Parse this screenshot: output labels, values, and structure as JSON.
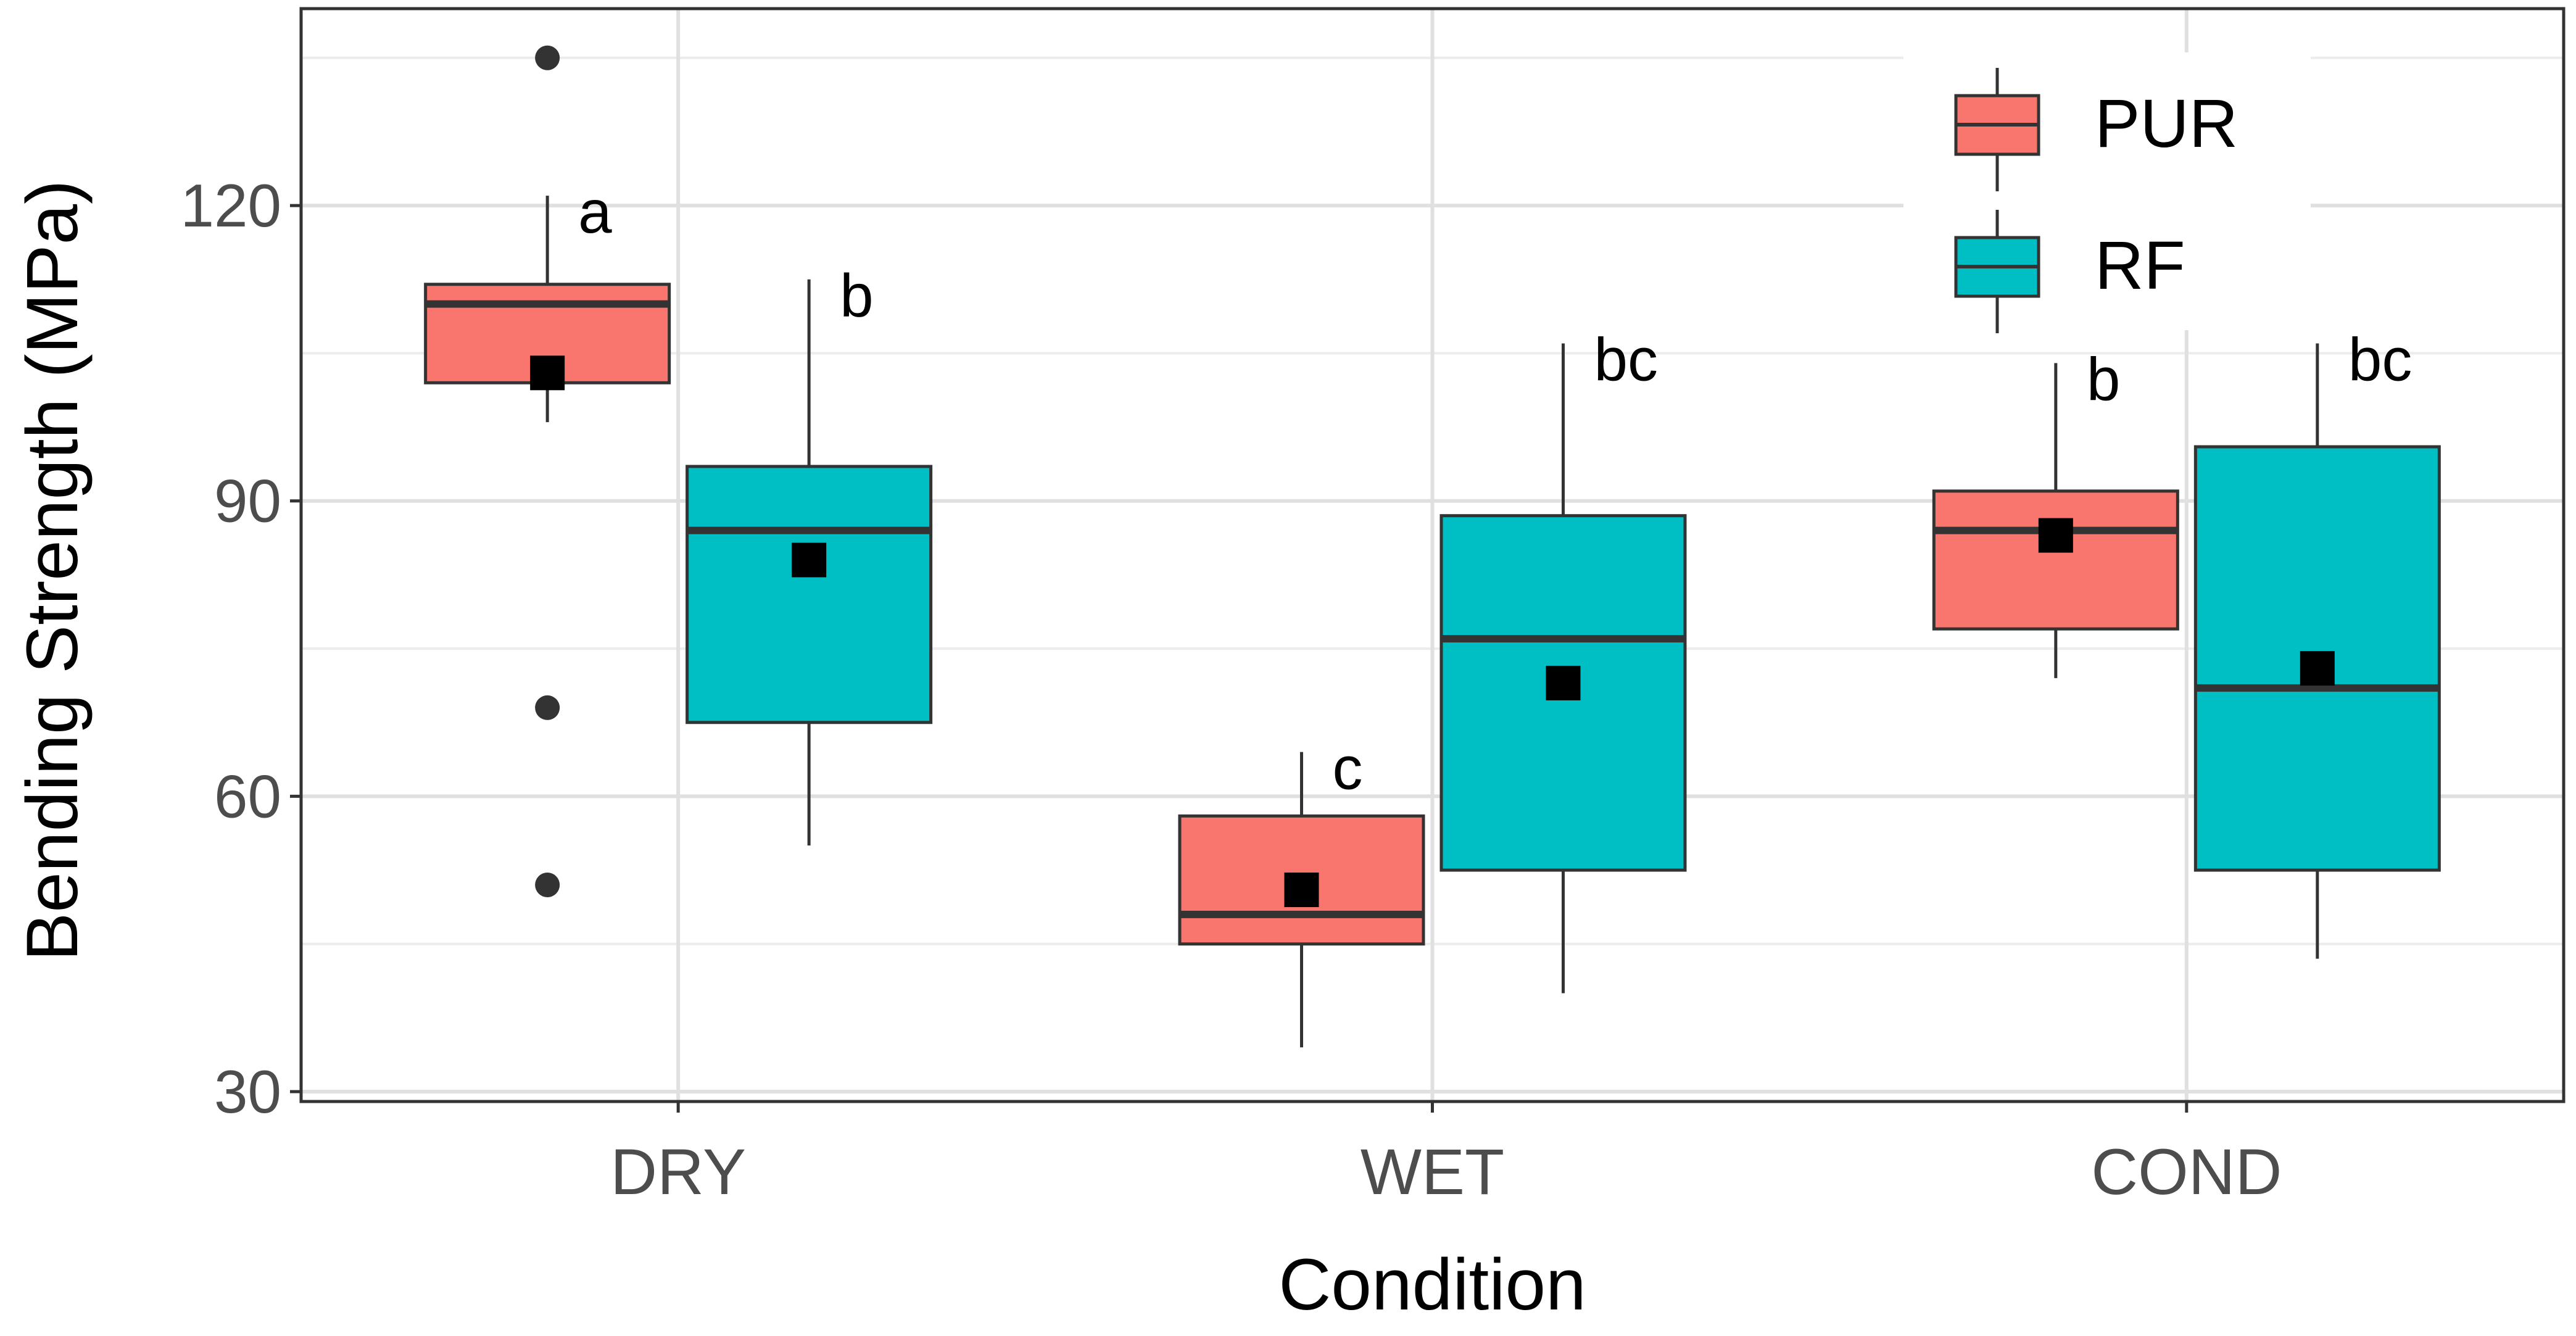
{
  "chart_data": {
    "type": "box",
    "xlabel": "Condition",
    "ylabel": "Bending Strength (MPa)",
    "ylim": [
      29,
      140
    ],
    "yticks": [
      30,
      60,
      90,
      120
    ],
    "grid": true,
    "legend_position": "top-right",
    "categories": [
      "DRY",
      "WET",
      "COND"
    ],
    "series": [
      {
        "name": "PUR",
        "color": "#F8766D",
        "boxes": [
          {
            "category": "DRY",
            "whisker_low": 98,
            "q1": 102,
            "median": 110,
            "q3": 112,
            "whisker_high": 121,
            "mean": 103,
            "outliers": [
              135,
              69,
              51
            ],
            "letter": "a"
          },
          {
            "category": "WET",
            "whisker_low": 34.5,
            "q1": 45,
            "median": 48,
            "q3": 58,
            "whisker_high": 64.5,
            "mean": 50.5,
            "outliers": [],
            "letter": "c"
          },
          {
            "category": "COND",
            "whisker_low": 72,
            "q1": 77,
            "median": 87,
            "q3": 91,
            "whisker_high": 104,
            "mean": 86.5,
            "outliers": [],
            "letter": "b"
          }
        ]
      },
      {
        "name": "RF",
        "color": "#00BFC4",
        "boxes": [
          {
            "category": "DRY",
            "whisker_low": 55,
            "q1": 67.5,
            "median": 87,
            "q3": 93.5,
            "whisker_high": 112.5,
            "mean": 84,
            "outliers": [],
            "letter": "b"
          },
          {
            "category": "WET",
            "whisker_low": 40,
            "q1": 52.5,
            "median": 76,
            "q3": 88.5,
            "whisker_high": 106,
            "mean": 71.5,
            "outliers": [],
            "letter": "bc"
          },
          {
            "category": "COND",
            "whisker_low": 43.5,
            "q1": 52.5,
            "median": 71,
            "q3": 95.5,
            "whisker_high": 106,
            "mean": 73,
            "outliers": [],
            "letter": "bc"
          }
        ]
      }
    ]
  }
}
